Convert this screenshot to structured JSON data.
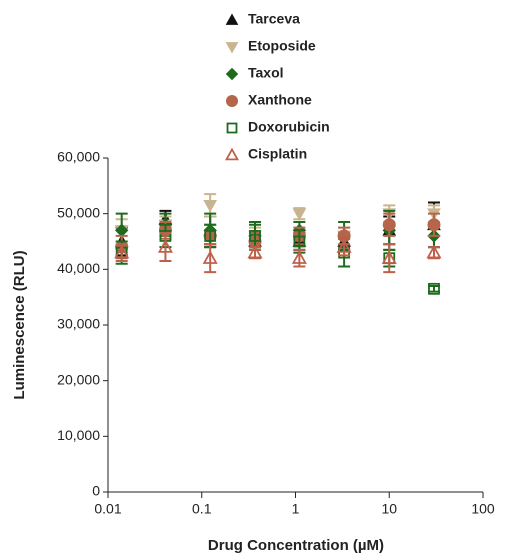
{
  "chart_data": {
    "type": "scatter",
    "xscale": "log",
    "x_label": "Drug Concentration (µM)",
    "y_label": "Luminescence (RLU)",
    "xlim": [
      0.01,
      100
    ],
    "xticks": [
      0.01,
      0.1,
      1,
      10,
      100
    ],
    "ylim": [
      0,
      60000
    ],
    "yticks": [
      0,
      {
        "value": 10000,
        "label": "10,000"
      },
      {
        "value": 20000,
        "label": "20,000"
      },
      {
        "value": 30000,
        "label": "30,000"
      },
      {
        "value": 40000,
        "label": "40,000"
      },
      {
        "value": 50000,
        "label": "50,000"
      },
      {
        "value": 60000,
        "label": "60,000"
      }
    ],
    "x": [
      0.014,
      0.041,
      0.123,
      0.37,
      1.1,
      3.3,
      10,
      30
    ],
    "series": [
      {
        "name": "Tarceva",
        "color": "#111111",
        "marker": "triangle-up",
        "filled": true,
        "values": [
          45000,
          49000,
          47000,
          45000,
          45000,
          45000,
          47000,
          48000
        ],
        "errors": [
          2500,
          1500,
          2500,
          1500,
          1500,
          1500,
          2500,
          4000
        ]
      },
      {
        "name": "Etoposide",
        "color": "#c9b48f",
        "marker": "triangle-down",
        "filled": true,
        "values": [
          47000,
          48000,
          51500,
          46000,
          50000,
          46000,
          50000,
          50000
        ],
        "errors": [
          2000,
          1500,
          2000,
          1500,
          1000,
          1500,
          1500,
          1500
        ]
      },
      {
        "name": "Taxol",
        "color": "#1d6b1d",
        "marker": "diamond",
        "filled": true,
        "values": [
          47000,
          48000,
          47000,
          46000,
          47000,
          46000,
          47000,
          46000
        ],
        "errors": [
          3000,
          2000,
          3000,
          2500,
          1500,
          2500,
          3500,
          2000
        ]
      },
      {
        "name": "Xanthone",
        "color": "#b5654a",
        "marker": "circle",
        "filled": true,
        "values": [
          44000,
          47000,
          46000,
          45000,
          46000,
          46000,
          48000,
          48000
        ],
        "errors": [
          2000,
          1500,
          2000,
          1500,
          1500,
          1500,
          2000,
          2000
        ]
      },
      {
        "name": "Doxorubicin",
        "color": "#1d6b1d",
        "marker": "square",
        "filled": false,
        "values": [
          43000,
          46000,
          46000,
          46000,
          45000,
          43000,
          42000,
          36500
        ],
        "errors": [
          2000,
          2000,
          2000,
          2000,
          2000,
          2500,
          1500,
          500
        ]
      },
      {
        "name": "Cisplatin",
        "color": "#c0604a",
        "marker": "triangle-up",
        "filled": false,
        "values": [
          43000,
          44000,
          42000,
          43000,
          42000,
          44000,
          42000,
          43000
        ],
        "errors": [
          1500,
          2500,
          2500,
          1000,
          1500,
          1500,
          2500,
          1000
        ]
      }
    ]
  }
}
